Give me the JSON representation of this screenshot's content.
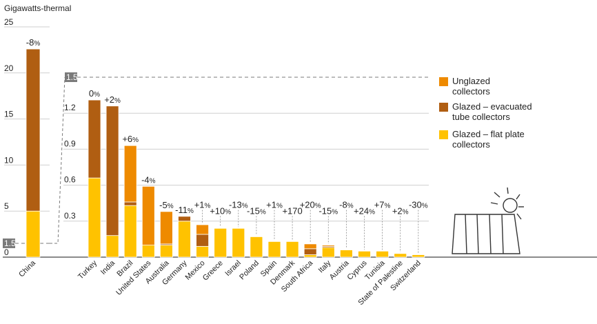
{
  "chart_data": {
    "type": "bar",
    "stacked": true,
    "unit_label": "Gigawatts-thermal",
    "legend_placement": "right",
    "colors": {
      "unglazed": "#ee8a00",
      "evacuated": "#b05e12",
      "flat": "#ffc200",
      "grid": "#cfcfcf",
      "marker_box": "#7a7a7a"
    },
    "series": [
      {
        "key": "unglazed",
        "name_lines": [
          "Unglazed",
          "collectors"
        ]
      },
      {
        "key": "evacuated",
        "name_lines": [
          "Glazed – evacuated",
          "tube collectors"
        ]
      },
      {
        "key": "flat",
        "name_lines": [
          "Glazed – flat plate",
          "collectors"
        ]
      }
    ],
    "left_panel": {
      "ylim": [
        0,
        25
      ],
      "yticks": [
        "0",
        "5",
        "10",
        "15",
        "20",
        "25"
      ],
      "highlight_value": 1.5,
      "highlight_label": "1.5",
      "bars": [
        {
          "category": "China",
          "flat": 5.0,
          "evacuated": 17.6,
          "unglazed": 0,
          "change_num": "-8",
          "change_pct": "%"
        }
      ]
    },
    "right_panel": {
      "ylim": [
        0,
        1.5
      ],
      "yticks": [
        "0.3",
        "0.6",
        "0.9",
        "1.2"
      ],
      "top_label": "1.5",
      "bars": [
        {
          "category": "Turkey",
          "flat": 0.66,
          "evacuated": 0.65,
          "unglazed": 0,
          "change_num": "0",
          "change_pct": "%"
        },
        {
          "category": "India",
          "flat": 0.18,
          "evacuated": 1.08,
          "unglazed": 0,
          "change_num": "+2",
          "change_pct": "%"
        },
        {
          "category": "Brazil",
          "flat": 0.43,
          "evacuated": 0.03,
          "unglazed": 0.47,
          "change_num": "+6",
          "change_pct": "%"
        },
        {
          "category": "United States",
          "flat": 0.1,
          "evacuated": 0,
          "unglazed": 0.49,
          "change_num": "-4",
          "change_pct": "%"
        },
        {
          "category": "Australia",
          "flat": 0.1,
          "evacuated": 0.01,
          "unglazed": 0.27,
          "change_num": "-5",
          "change_pct": "%"
        },
        {
          "category": "Germany",
          "flat": 0.3,
          "evacuated": 0.04,
          "unglazed": 0,
          "change_num": "-11",
          "change_pct": "%"
        },
        {
          "category": "Mexico",
          "flat": 0.09,
          "evacuated": 0.1,
          "unglazed": 0.08,
          "change_num": "+1",
          "change_pct": "%"
        },
        {
          "category": "Greece",
          "flat": 0.24,
          "evacuated": 0,
          "unglazed": 0,
          "change_num": "+10",
          "change_pct": "%"
        },
        {
          "category": "Israel",
          "flat": 0.24,
          "evacuated": 0,
          "unglazed": 0,
          "change_num": "-13",
          "change_pct": "%"
        },
        {
          "category": "Poland",
          "flat": 0.17,
          "evacuated": 0,
          "unglazed": 0,
          "change_num": "-15",
          "change_pct": "%"
        },
        {
          "category": "Spain",
          "flat": 0.13,
          "evacuated": 0,
          "unglazed": 0,
          "change_num": "+1",
          "change_pct": "%"
        },
        {
          "category": "Denmark",
          "flat": 0.13,
          "evacuated": 0,
          "unglazed": 0,
          "change_num": "+170",
          "change_pct": ""
        },
        {
          "category": "South Africa",
          "flat": 0.02,
          "evacuated": 0.05,
          "unglazed": 0.04,
          "change_num": "+20",
          "change_pct": "%"
        },
        {
          "category": "Italy",
          "flat": 0.08,
          "evacuated": 0.01,
          "unglazed": 0.01,
          "change_num": "-15",
          "change_pct": "%"
        },
        {
          "category": "Austria",
          "flat": 0.06,
          "evacuated": 0,
          "unglazed": 0,
          "change_num": "-8",
          "change_pct": "%"
        },
        {
          "category": "Cyprus",
          "flat": 0.05,
          "evacuated": 0,
          "unglazed": 0,
          "change_num": "+24",
          "change_pct": "%"
        },
        {
          "category": "Tunisia",
          "flat": 0.05,
          "evacuated": 0,
          "unglazed": 0,
          "change_num": "+7",
          "change_pct": "%"
        },
        {
          "category": "State of Palestine",
          "flat": 0.03,
          "evacuated": 0,
          "unglazed": 0,
          "change_num": "+2",
          "change_pct": "%"
        },
        {
          "category": "Switzerland",
          "flat": 0.02,
          "evacuated": 0,
          "unglazed": 0,
          "change_num": "-30",
          "change_pct": "%"
        }
      ]
    }
  },
  "icons": {
    "illustration": "solar-collector-with-sun-icon"
  }
}
